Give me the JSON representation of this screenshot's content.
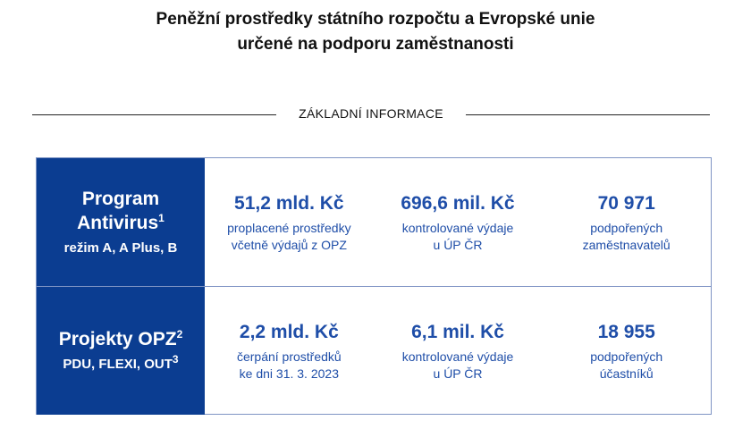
{
  "title": {
    "line1": "Peněžní prostředky státního rozpočtu a Evropské unie",
    "line2": "určené na podporu zaměstnanosti"
  },
  "section_label": "ZÁKLADNÍ INFORMACE",
  "rows": [
    {
      "head_title": "Program",
      "head_title2": "Antivirus",
      "head_title2_sup": "1",
      "head_sub": "režim A, A Plus, B",
      "cells": [
        {
          "value": "51,2 mld. Kč",
          "desc1": "proplacené prostředky",
          "desc2": "včetně výdajů z OPZ"
        },
        {
          "value": "696,6 mil. Kč",
          "desc1": "kontrolované výdaje",
          "desc2": "u ÚP ČR"
        },
        {
          "value": "70 971",
          "desc1": "podpořených",
          "desc2": "zaměstnavatelů"
        }
      ]
    },
    {
      "head_title": "Projekty OPZ",
      "head_title_sup": "2",
      "head_sub": "PDU, FLEXI, OUT",
      "head_sub_sup": "3",
      "cells": [
        {
          "value": "2,2 mld. Kč",
          "desc1": "čerpání prostředků",
          "desc2": "ke dni 31. 3. 2023"
        },
        {
          "value": "6,1 mil. Kč",
          "desc1": "kontrolované výdaje",
          "desc2": "u ÚP ČR"
        },
        {
          "value": "18 955",
          "desc1": "podpořených",
          "desc2": "účastníků"
        }
      ]
    }
  ],
  "colors": {
    "header_bg": "#0b3d91",
    "value_text": "#1f4ea8",
    "border": "#7f94c4"
  }
}
